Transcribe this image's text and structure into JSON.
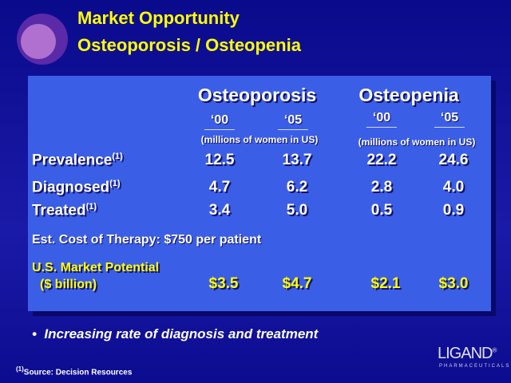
{
  "header": {
    "title_lines": [
      "Market Opportunity",
      "Osteoporosis / Osteopenia"
    ]
  },
  "table": {
    "groups": [
      {
        "name": "Osteoporosis",
        "years": [
          "‘00",
          "‘05"
        ],
        "unit": "(millions of women in US)"
      },
      {
        "name": "Osteopenia",
        "years": [
          "‘00",
          "‘05"
        ],
        "unit": "(millions of women in US)"
      }
    ],
    "rows": [
      {
        "label": "Prevalence",
        "note": "(1)",
        "cells": [
          "12.5",
          "13.7",
          "22.2",
          "24.6"
        ]
      },
      {
        "label": "Diagnosed",
        "note": "(1)",
        "cells": [
          "4.7",
          "6.2",
          "2.8",
          "4.0"
        ]
      },
      {
        "label": "Treated",
        "note": "(1)",
        "cells": [
          "3.4",
          "5.0",
          "0.5",
          "0.9"
        ]
      }
    ],
    "cost_note": "Est. Cost of Therapy: $750 per patient",
    "market": {
      "label_lines": [
        "U.S. Market Potential",
        "($ billion)"
      ],
      "cells": [
        "$3.5",
        "$4.7",
        "$2.1",
        "$3.0"
      ]
    }
  },
  "bullet": "Increasing rate of diagnosis and treatment",
  "footnote": {
    "marker": "(1)",
    "text": "Source:  Decision Resources"
  },
  "logo": {
    "name": "LIGAND",
    "mark": "®",
    "tagline": "PHARMACEUTICALS"
  }
}
